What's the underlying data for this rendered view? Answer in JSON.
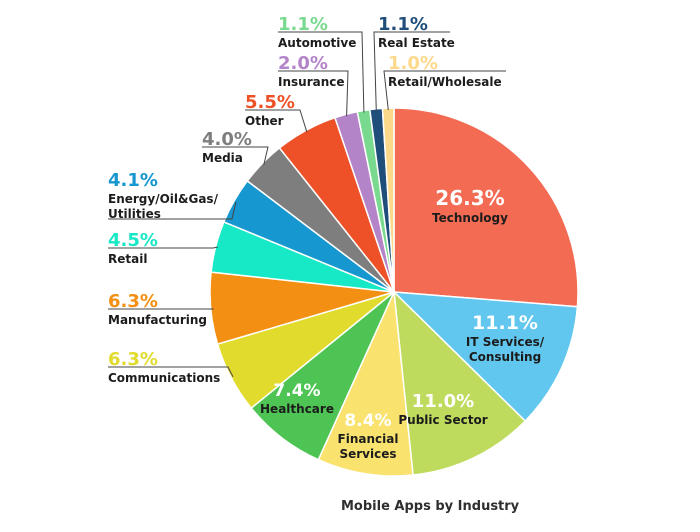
{
  "chart_data": {
    "type": "pie",
    "title": "",
    "caption": "Mobile Apps by Industry",
    "start": "12 o'clock",
    "direction": "clockwise",
    "slices": [
      {
        "label": "Technology",
        "value": 26.3,
        "display": "26.3%",
        "color": "#F26B52"
      },
      {
        "label": "IT Services/ Consulting",
        "value": 11.1,
        "display": "11.1%",
        "color": "#62C7EF"
      },
      {
        "label": "Public Sector",
        "value": 11.0,
        "display": "11.0%",
        "color": "#BFDB5E"
      },
      {
        "label": "Financial Services",
        "value": 8.4,
        "display": "8.4%",
        "color": "#F9E36E"
      },
      {
        "label": "Healthcare",
        "value": 7.4,
        "display": "7.4%",
        "color": "#4DC453"
      },
      {
        "label": "Communications",
        "value": 6.3,
        "display": "6.3%",
        "color": "#E1DB2D"
      },
      {
        "label": "Manufacturing",
        "value": 6.3,
        "display": "6.3%",
        "color": "#F39014"
      },
      {
        "label": "Retail",
        "value": 4.5,
        "display": "4.5%",
        "color": "#17E8C5"
      },
      {
        "label": "Energy/Oil&Gas/ Utilities",
        "value": 4.1,
        "display": "4.1%",
        "color": "#1797CF"
      },
      {
        "label": "Media",
        "value": 4.0,
        "display": "4.0%",
        "color": "#7E7E7E"
      },
      {
        "label": "Other",
        "value": 5.5,
        "display": "5.5%",
        "color": "#EE5127"
      },
      {
        "label": "Insurance",
        "value": 2.0,
        "display": "2.0%",
        "color": "#B484C9"
      },
      {
        "label": "Automotive",
        "value": 1.1,
        "display": "1.1%",
        "color": "#79D98E"
      },
      {
        "label": "Real Estate",
        "value": 1.1,
        "display": "1.1%",
        "color": "#1F4E7A"
      },
      {
        "label": "Retail/Wholesale",
        "value": 1.0,
        "display": "1.0%",
        "color": "#FCD98A"
      }
    ]
  }
}
